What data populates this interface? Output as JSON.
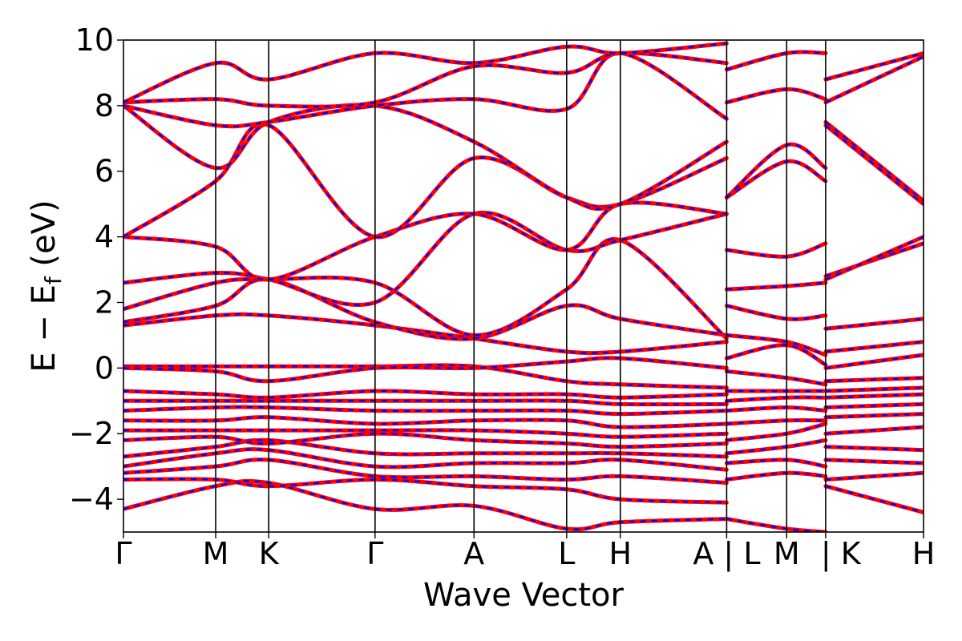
{
  "chart_data": {
    "type": "line",
    "title": "",
    "xlabel": "Wave Vector",
    "ylabel": "E − E",
    "ylabel_subscript": "f",
    "ylabel_unit": " (eV)",
    "ylim": [
      -5,
      10
    ],
    "yticks": [
      -4,
      -2,
      0,
      2,
      4,
      6,
      8,
      10
    ],
    "ytick_labels": [
      "−4",
      "−2",
      "0",
      "2",
      "4",
      "6",
      "8",
      "10"
    ],
    "xlim": [
      0,
      7.6
    ],
    "kpoints": [
      {
        "label": "Γ",
        "x": 0.0
      },
      {
        "label": "M",
        "x": 0.876
      },
      {
        "label": "K",
        "x": 1.38
      },
      {
        "label": "Γ",
        "x": 2.39
      },
      {
        "label": "A",
        "x": 3.33
      },
      {
        "label": "L",
        "x": 4.21
      },
      {
        "label": "H",
        "x": 4.72
      },
      {
        "label": "A | L",
        "x": 5.73
      },
      {
        "label": "M",
        "x": 6.3
      },
      {
        "label": "| K",
        "x": 6.67
      },
      {
        "label": "H",
        "x": 7.6
      }
    ],
    "segment_breaks": [
      5.73,
      6.67
    ],
    "grid": false,
    "series_colors": {
      "primary": "#ff0000",
      "overlay": "#0000ff"
    },
    "bands": [
      {
        "x": [
          0,
          0.876,
          1.38,
          2.39,
          3.33,
          4.21,
          4.72,
          5.73
        ],
        "y": [
          -4.3,
          -3.6,
          -3.5,
          -4.3,
          -4.2,
          -4.9,
          -4.7,
          -4.6
        ]
      },
      {
        "x": [
          0,
          0.876,
          1.38,
          2.39,
          3.33,
          4.21,
          4.72,
          5.73
        ],
        "y": [
          -3.4,
          -3.4,
          -3.6,
          -3.4,
          -3.6,
          -3.7,
          -4.0,
          -4.1
        ]
      },
      {
        "x": [
          0,
          0.876,
          1.38,
          2.39,
          3.33,
          4.21,
          4.72,
          5.73
        ],
        "y": [
          -3.2,
          -3.0,
          -2.8,
          -3.3,
          -3.3,
          -3.4,
          -3.3,
          -3.5
        ]
      },
      {
        "x": [
          0,
          0.876,
          1.38,
          2.39,
          3.33,
          4.21,
          4.72,
          5.73
        ],
        "y": [
          -3.0,
          -2.6,
          -2.5,
          -3.0,
          -2.9,
          -2.9,
          -2.8,
          -3.1
        ]
      },
      {
        "x": [
          0,
          0.876,
          1.38,
          2.39,
          3.33,
          4.21,
          4.72,
          5.73
        ],
        "y": [
          -2.7,
          -2.4,
          -2.2,
          -2.6,
          -2.6,
          -2.6,
          -2.6,
          -2.7
        ]
      },
      {
        "x": [
          0,
          0.876,
          1.38,
          2.39,
          3.33,
          4.21,
          4.72,
          5.73
        ],
        "y": [
          -2.2,
          -2.1,
          -2.3,
          -2.0,
          -2.2,
          -2.3,
          -2.4,
          -2.3
        ]
      },
      {
        "x": [
          0,
          0.876,
          1.38,
          2.39,
          3.33,
          4.21,
          4.72,
          5.73
        ],
        "y": [
          -1.9,
          -1.9,
          -1.9,
          -1.9,
          -1.9,
          -2.0,
          -2.1,
          -2.0
        ]
      },
      {
        "x": [
          0,
          0.876,
          1.38,
          2.39,
          3.33,
          4.21,
          4.72,
          5.73
        ],
        "y": [
          -1.6,
          -1.6,
          -1.5,
          -1.7,
          -1.6,
          -1.6,
          -1.8,
          -1.7
        ]
      },
      {
        "x": [
          0,
          0.876,
          1.38,
          2.39,
          3.33,
          4.21,
          4.72,
          5.73
        ],
        "y": [
          -1.3,
          -1.2,
          -1.2,
          -1.3,
          -1.3,
          -1.3,
          -1.4,
          -1.3
        ]
      },
      {
        "x": [
          0,
          0.876,
          1.38,
          2.39,
          3.33,
          4.21,
          4.72,
          5.73
        ],
        "y": [
          -1.0,
          -1.0,
          -1.0,
          -1.0,
          -1.0,
          -1.0,
          -1.1,
          -1.1
        ]
      },
      {
        "x": [
          0,
          0.876,
          1.38,
          2.39,
          3.33,
          4.21,
          4.72,
          5.73
        ],
        "y": [
          -0.7,
          -0.8,
          -0.9,
          -0.7,
          -0.8,
          -0.8,
          -0.9,
          -0.8
        ]
      },
      {
        "x": [
          0,
          0.876,
          1.38,
          2.39,
          3.33,
          4.21,
          4.72,
          5.73
        ],
        "y": [
          0.05,
          0.05,
          0.05,
          0.05,
          0.05,
          -0.4,
          -0.5,
          -0.6
        ]
      },
      {
        "x": [
          0,
          0.876,
          1.38,
          2.39,
          3.33,
          4.21,
          4.72,
          5.73
        ],
        "y": [
          0.0,
          -0.1,
          -0.4,
          0.0,
          0.0,
          0.2,
          0.3,
          0.0
        ]
      },
      {
        "x": [
          0,
          0.876,
          1.38,
          2.39,
          3.33,
          4.21,
          4.72,
          5.73
        ],
        "y": [
          1.3,
          1.6,
          1.6,
          1.3,
          0.9,
          0.5,
          0.5,
          0.8
        ]
      },
      {
        "x": [
          0,
          0.876,
          1.38,
          2.39,
          3.33,
          4.21,
          4.72,
          5.73
        ],
        "y": [
          1.4,
          1.9,
          2.7,
          1.4,
          0.9,
          1.9,
          1.5,
          1.0
        ]
      },
      {
        "x": [
          0,
          0.876,
          1.38,
          2.39,
          3.33,
          4.21,
          4.72,
          5.73
        ],
        "y": [
          1.8,
          2.6,
          2.7,
          2.6,
          1.0,
          2.4,
          3.9,
          0.9
        ]
      },
      {
        "x": [
          0,
          0.876,
          1.38,
          2.39,
          3.33,
          4.21,
          4.72,
          5.73
        ],
        "y": [
          2.6,
          2.9,
          2.7,
          2.0,
          4.7,
          3.6,
          3.9,
          4.7
        ]
      },
      {
        "x": [
          0,
          0.876,
          1.38,
          2.39,
          3.33,
          4.21,
          4.72,
          5.73
        ],
        "y": [
          4.0,
          3.7,
          2.7,
          4.0,
          4.7,
          3.6,
          5.0,
          4.7
        ]
      },
      {
        "x": [
          0,
          0.876,
          1.38,
          2.39,
          3.33,
          4.21,
          4.72,
          5.73
        ],
        "y": [
          4.0,
          5.7,
          7.4,
          4.0,
          6.4,
          5.2,
          5.0,
          6.4
        ]
      },
      {
        "x": [
          0,
          0.876,
          1.38,
          2.39,
          3.33,
          4.21,
          4.72,
          5.73
        ],
        "y": [
          8.0,
          6.1,
          7.5,
          8.0,
          6.9,
          5.2,
          5.0,
          6.9
        ]
      },
      {
        "x": [
          0,
          0.876,
          1.38,
          2.39,
          3.33,
          4.21,
          4.72,
          5.73
        ],
        "y": [
          8.0,
          7.4,
          7.5,
          8.0,
          8.2,
          7.9,
          9.6,
          7.6
        ]
      },
      {
        "x": [
          0,
          0.876,
          1.38,
          2.39,
          3.33,
          4.21,
          4.72,
          5.73
        ],
        "y": [
          8.1,
          8.2,
          8.0,
          8.1,
          9.2,
          9.0,
          9.6,
          9.3
        ]
      },
      {
        "x": [
          0,
          0.876,
          1.38,
          2.39,
          3.33,
          4.21,
          4.72,
          5.73
        ],
        "y": [
          8.1,
          9.3,
          8.8,
          9.6,
          9.3,
          9.8,
          9.6,
          9.9
        ]
      },
      {
        "x": [
          5.73,
          6.3,
          6.67
        ],
        "y": [
          -4.6,
          -4.9,
          -5.0
        ]
      },
      {
        "x": [
          5.73,
          6.3,
          6.67
        ],
        "y": [
          -3.4,
          -3.2,
          -3.3
        ]
      },
      {
        "x": [
          5.73,
          6.3,
          6.67
        ],
        "y": [
          -2.9,
          -2.8,
          -3.0
        ]
      },
      {
        "x": [
          5.73,
          6.3,
          6.67
        ],
        "y": [
          -2.6,
          -2.4,
          -2.2
        ]
      },
      {
        "x": [
          5.73,
          6.3,
          6.67
        ],
        "y": [
          -2.2,
          -2.0,
          -1.7
        ]
      },
      {
        "x": [
          5.73,
          6.3,
          6.67
        ],
        "y": [
          -1.7,
          -1.6,
          -1.6
        ]
      },
      {
        "x": [
          5.73,
          6.3,
          6.67
        ],
        "y": [
          -1.3,
          -1.2,
          -1.3
        ]
      },
      {
        "x": [
          5.73,
          6.3,
          6.67
        ],
        "y": [
          -1.0,
          -0.9,
          -0.9
        ]
      },
      {
        "x": [
          5.73,
          6.3,
          6.67
        ],
        "y": [
          -0.7,
          -0.7,
          -0.7
        ]
      },
      {
        "x": [
          5.73,
          6.3,
          6.67
        ],
        "y": [
          -0.1,
          -0.3,
          -0.5
        ]
      },
      {
        "x": [
          5.73,
          6.3,
          6.67
        ],
        "y": [
          0.3,
          0.7,
          0.1
        ]
      },
      {
        "x": [
          5.73,
          6.3,
          6.67
        ],
        "y": [
          1.0,
          0.8,
          0.4
        ]
      },
      {
        "x": [
          5.73,
          6.3,
          6.67
        ],
        "y": [
          1.9,
          1.5,
          1.6
        ]
      },
      {
        "x": [
          5.73,
          6.3,
          6.67
        ],
        "y": [
          2.4,
          2.5,
          2.6
        ]
      },
      {
        "x": [
          5.73,
          6.3,
          6.67
        ],
        "y": [
          3.6,
          3.4,
          3.8
        ]
      },
      {
        "x": [
          5.73,
          6.3,
          6.67
        ],
        "y": [
          5.2,
          6.3,
          5.7
        ]
      },
      {
        "x": [
          5.73,
          6.3,
          6.67
        ],
        "y": [
          5.2,
          6.8,
          6.1
        ]
      },
      {
        "x": [
          5.73,
          6.3,
          6.67
        ],
        "y": [
          8.1,
          8.5,
          8.2
        ]
      },
      {
        "x": [
          5.73,
          6.3,
          6.67
        ],
        "y": [
          9.1,
          9.6,
          9.6
        ]
      },
      {
        "x": [
          6.67,
          7.6
        ],
        "y": [
          -3.6,
          -4.4
        ]
      },
      {
        "x": [
          6.67,
          7.6
        ],
        "y": [
          -3.4,
          -3.2
        ]
      },
      {
        "x": [
          6.67,
          7.6
        ],
        "y": [
          -2.8,
          -2.9
        ]
      },
      {
        "x": [
          6.67,
          7.6
        ],
        "y": [
          -2.4,
          -2.5
        ]
      },
      {
        "x": [
          6.67,
          7.6
        ],
        "y": [
          -2.0,
          -1.8
        ]
      },
      {
        "x": [
          6.67,
          7.6
        ],
        "y": [
          -1.5,
          -1.4
        ]
      },
      {
        "x": [
          6.67,
          7.6
        ],
        "y": [
          -1.2,
          -1.1
        ]
      },
      {
        "x": [
          6.67,
          7.6
        ],
        "y": [
          -0.9,
          -0.8
        ]
      },
      {
        "x": [
          6.67,
          7.6
        ],
        "y": [
          -0.7,
          -0.6
        ]
      },
      {
        "x": [
          6.67,
          7.6
        ],
        "y": [
          -0.4,
          -0.3
        ]
      },
      {
        "x": [
          6.67,
          7.6
        ],
        "y": [
          0.0,
          0.4
        ]
      },
      {
        "x": [
          6.67,
          7.6
        ],
        "y": [
          0.5,
          0.8
        ]
      },
      {
        "x": [
          6.67,
          7.6
        ],
        "y": [
          1.2,
          1.5
        ]
      },
      {
        "x": [
          6.67,
          7.6
        ],
        "y": [
          2.8,
          3.8
        ]
      },
      {
        "x": [
          6.67,
          7.6
        ],
        "y": [
          2.7,
          4.0
        ]
      },
      {
        "x": [
          6.67,
          7.6
        ],
        "y": [
          7.5,
          5.1
        ]
      },
      {
        "x": [
          6.67,
          7.6
        ],
        "y": [
          7.4,
          5.0
        ]
      },
      {
        "x": [
          6.67,
          7.6
        ],
        "y": [
          8.1,
          9.5
        ]
      },
      {
        "x": [
          6.67,
          7.6
        ],
        "y": [
          8.8,
          9.6
        ]
      }
    ]
  }
}
